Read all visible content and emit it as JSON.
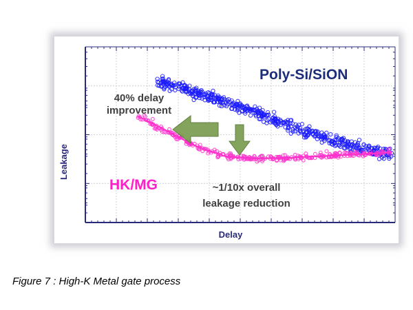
{
  "caption": "Figure 7 : High-K Metal gate process",
  "chart_data": {
    "type": "scatter",
    "title": "",
    "xlabel": "Delay",
    "ylabel": "Leakage",
    "xscale": "linear",
    "yscale": "log",
    "grid": true,
    "legend": "none",
    "series": [
      {
        "name": "Poly-Si/SiON",
        "color": "#1a1aff",
        "trend": [
          [
            0.23,
            3.6
          ],
          [
            0.3,
            3.1
          ],
          [
            0.4,
            2.45
          ],
          [
            0.5,
            1.9
          ],
          [
            0.6,
            1.45
          ],
          [
            0.7,
            1.1
          ],
          [
            0.8,
            0.87
          ],
          [
            0.9,
            0.72
          ],
          [
            0.99,
            0.62
          ]
        ]
      },
      {
        "name": "HK/MG",
        "color": "#ff33cc",
        "trend": [
          [
            0.17,
            1.55
          ],
          [
            0.25,
            1.15
          ],
          [
            0.35,
            0.78
          ],
          [
            0.45,
            0.6
          ],
          [
            0.55,
            0.57
          ],
          [
            0.65,
            0.58
          ],
          [
            0.75,
            0.6
          ],
          [
            0.85,
            0.62
          ],
          [
            0.99,
            0.66
          ]
        ]
      }
    ],
    "annotations": [
      {
        "text_lines": [
          "40% delay",
          "improvement"
        ],
        "arrow": "left"
      },
      {
        "text_lines": [
          "~1/10x overall",
          "leakage reduction"
        ],
        "arrow": "down"
      },
      {
        "text": "Poly-Si/SiON",
        "color": "#1c2d7a"
      },
      {
        "text": "HK/MG",
        "color": "#ff1ec8"
      }
    ],
    "colors": {
      "axis": "#2a2a7a",
      "grid": "#c8c8d2",
      "arrow": "#7e9f54"
    }
  }
}
